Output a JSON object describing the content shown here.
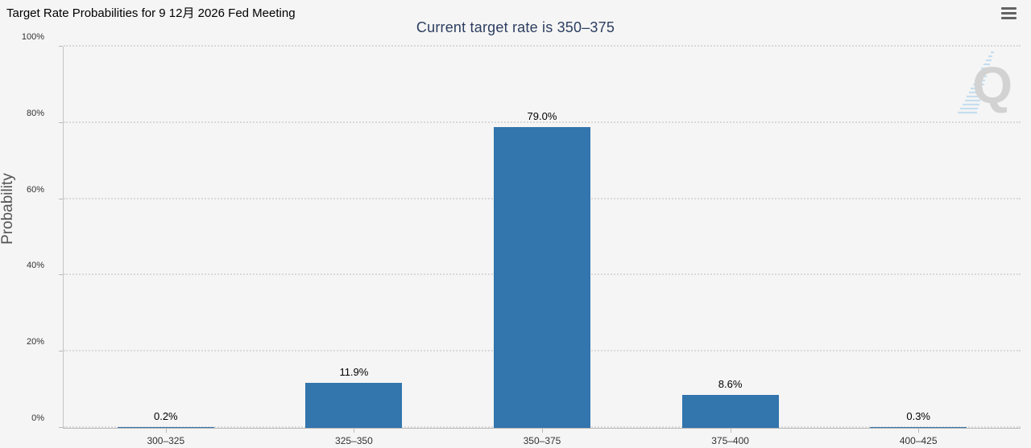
{
  "header": {
    "page_title": "Target Rate Probabilities for 9 12月 2026 Fed Meeting",
    "menu_icon": "hamburger-menu-icon"
  },
  "watermark": {
    "letter": "Q"
  },
  "chart_data": {
    "type": "bar",
    "title": "Current target rate is 350–375",
    "categories": [
      "300–325",
      "325–350",
      "350–375",
      "375–400",
      "400–425"
    ],
    "values": [
      0.2,
      11.9,
      79.0,
      8.6,
      0.3
    ],
    "value_labels": [
      "0.2%",
      "11.9%",
      "79.0%",
      "8.6%",
      "0.3%"
    ],
    "xlabel": "",
    "ylabel": "Probability",
    "ylim": [
      0,
      100
    ],
    "yticks": [
      0,
      20,
      40,
      60,
      80,
      100
    ],
    "ytick_labels": [
      "0%",
      "20%",
      "40%",
      "60%",
      "80%",
      "100%"
    ],
    "grid": "horizontal dotted",
    "legend": "none",
    "bar_color": "#3375ad",
    "background_color": "#f5f5f5",
    "title_color": "#2c3e60"
  }
}
